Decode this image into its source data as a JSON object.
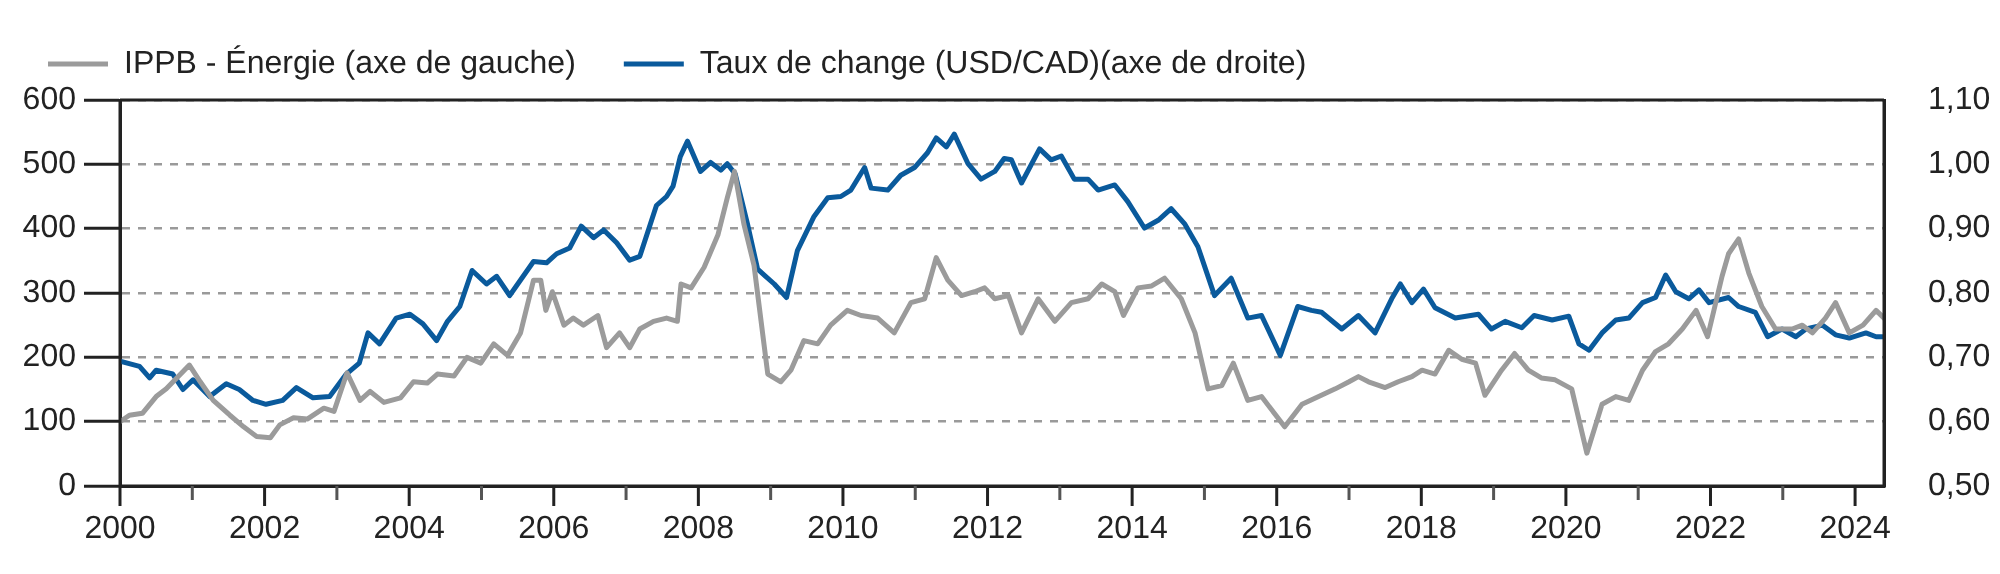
{
  "chart_data": {
    "type": "line",
    "legend": "top left",
    "grid": "y",
    "marker": "none",
    "line_style": "solid",
    "xlim": [
      2000,
      2024.4
    ],
    "xticks": [
      2000,
      {
        "value": 2001,
        "label": null
      },
      2002,
      {
        "value": 2003,
        "label": null
      },
      2004,
      {
        "value": 2005,
        "label": null
      },
      2006,
      {
        "value": 2007,
        "label": null
      },
      2008,
      {
        "value": 2009,
        "label": null
      },
      2010,
      {
        "value": 2011,
        "label": null
      },
      2012,
      {
        "value": 2013,
        "label": null
      },
      2014,
      {
        "value": 2015,
        "label": null
      },
      2016,
      {
        "value": 2017,
        "label": null
      },
      2018,
      {
        "value": 2019,
        "label": null
      },
      2020,
      {
        "value": 2021,
        "label": null
      },
      2022,
      {
        "value": 2023,
        "label": null
      },
      2024
    ],
    "ylim": [
      0,
      600
    ],
    "yticks": [
      0,
      100,
      200,
      300,
      400,
      500,
      600
    ],
    "y2lim": [
      0.5,
      1.1
    ],
    "y2ticks": [
      {
        "value": 0.5,
        "label": "0,50"
      },
      {
        "value": 0.6,
        "label": "0,60"
      },
      {
        "value": 0.7,
        "label": "0,70"
      },
      {
        "value": 0.8,
        "label": "0,80"
      },
      {
        "value": 0.9,
        "label": "0,90"
      },
      {
        "value": 1.0,
        "label": "1,00"
      },
      {
        "value": 1.1,
        "label": "1,10"
      }
    ],
    "series": [
      {
        "name": "IPPB - Énergie (axe de gauche)",
        "color": "#9b9b9b",
        "x": [
          2000.0,
          2000.13,
          2000.31,
          2000.5,
          2000.64,
          2000.96,
          2001.11,
          2001.29,
          2001.52,
          2001.71,
          2001.89,
          2002.08,
          2002.21,
          2002.4,
          2002.59,
          2002.82,
          2002.96,
          2003.14,
          2003.32,
          2003.46,
          2003.65,
          2003.88,
          2004.06,
          2004.25,
          2004.39,
          2004.62,
          2004.8,
          2004.99,
          2005.17,
          2005.36,
          2005.54,
          2005.72,
          2005.82,
          2005.89,
          2005.98,
          2006.14,
          2006.27,
          2006.41,
          2006.61,
          2006.73,
          2006.91,
          2007.05,
          2007.19,
          2007.38,
          2007.56,
          2007.71,
          2007.76,
          2007.9,
          2008.08,
          2008.27,
          2008.4,
          2008.5,
          2008.63,
          2008.77,
          2008.96,
          2009.14,
          2009.28,
          2009.46,
          2009.65,
          2009.83,
          2010.06,
          2010.25,
          2010.48,
          2010.71,
          2010.94,
          2011.13,
          2011.29,
          2011.45,
          2011.64,
          2011.82,
          2011.96,
          2012.1,
          2012.29,
          2012.47,
          2012.7,
          2012.93,
          2013.16,
          2013.39,
          2013.58,
          2013.76,
          2013.88,
          2014.08,
          2014.27,
          2014.45,
          2014.68,
          2014.87,
          2015.05,
          2015.24,
          2015.4,
          2015.6,
          2015.79,
          2016.11,
          2016.35,
          2016.58,
          2016.81,
          2017.0,
          2017.13,
          2017.27,
          2017.5,
          2017.68,
          2017.87,
          2018.01,
          2018.19,
          2018.38,
          2018.56,
          2018.75,
          2018.88,
          2019.11,
          2019.29,
          2019.48,
          2019.66,
          2019.85,
          2020.08,
          2020.29,
          2020.5,
          2020.69,
          2020.87,
          2021.06,
          2021.24,
          2021.42,
          2021.61,
          2021.8,
          2021.96,
          2022.16,
          2022.25,
          2022.39,
          2022.53,
          2022.71,
          2022.9,
          2023.13,
          2023.27,
          2023.41,
          2023.59,
          2023.73,
          2023.92,
          2024.11,
          2024.29,
          2024.4
        ],
        "values": [
          100,
          110,
          113,
          139,
          151,
          188,
          162,
          133,
          110,
          92,
          77,
          75,
          95,
          106,
          104,
          121,
          116,
          176,
          133,
          147,
          130,
          137,
          162,
          160,
          174,
          171,
          200,
          191,
          221,
          203,
          238,
          320,
          320,
          273,
          302,
          250,
          261,
          250,
          265,
          215,
          238,
          215,
          244,
          256,
          261,
          256,
          314,
          308,
          340,
          390,
          448,
          489,
          407,
          343,
          174,
          162,
          180,
          226,
          221,
          250,
          273,
          265,
          261,
          238,
          285,
          291,
          355,
          320,
          296,
          302,
          308,
          291,
          296,
          238,
          291,
          256,
          285,
          291,
          314,
          302,
          265,
          308,
          311,
          323,
          291,
          238,
          151,
          156,
          191,
          133,
          139,
          92,
          127,
          139,
          151,
          162,
          170,
          162,
          153,
          162,
          170,
          180,
          174,
          211,
          197,
          191,
          141,
          180,
          206,
          180,
          168,
          165,
          151,
          51,
          127,
          139,
          133,
          180,
          209,
          221,
          244,
          273,
          232,
          326,
          361,
          384,
          331,
          279,
          244,
          244,
          250,
          238,
          261,
          285,
          238,
          250,
          273,
          261
        ]
      },
      {
        "name": "Taux de change (USD/CAD)(axe de droite)",
        "color": "#0a5a9c",
        "axis": "y2",
        "x": [
          2000.0,
          2000.27,
          2000.41,
          2000.5,
          2000.73,
          2000.87,
          2001.01,
          2001.24,
          2001.47,
          2001.65,
          2001.84,
          2002.02,
          2002.25,
          2002.44,
          2002.67,
          2002.9,
          2003.13,
          2003.31,
          2003.43,
          2003.59,
          2003.82,
          2004.01,
          2004.19,
          2004.38,
          2004.53,
          2004.7,
          2004.87,
          2005.07,
          2005.21,
          2005.39,
          2005.72,
          2005.9,
          2006.04,
          2006.22,
          2006.38,
          2006.55,
          2006.69,
          2006.87,
          2007.05,
          2007.19,
          2007.42,
          2007.56,
          2007.65,
          2007.75,
          2007.85,
          2008.03,
          2008.17,
          2008.31,
          2008.4,
          2008.51,
          2008.68,
          2008.82,
          2009.05,
          2009.22,
          2009.37,
          2009.6,
          2009.79,
          2009.97,
          2010.11,
          2010.3,
          2010.39,
          2010.62,
          2010.8,
          2010.99,
          2011.17,
          2011.29,
          2011.43,
          2011.54,
          2011.73,
          2011.91,
          2012.1,
          2012.23,
          2012.33,
          2012.47,
          2012.72,
          2012.88,
          2013.02,
          2013.2,
          2013.39,
          2013.53,
          2013.76,
          2013.94,
          2014.17,
          2014.36,
          2014.54,
          2014.73,
          2014.91,
          2015.14,
          2015.37,
          2015.6,
          2015.79,
          2016.05,
          2016.29,
          2016.48,
          2016.62,
          2016.9,
          2017.13,
          2017.36,
          2017.59,
          2017.71,
          2017.87,
          2018.03,
          2018.19,
          2018.47,
          2018.79,
          2018.97,
          2019.16,
          2019.39,
          2019.56,
          2019.81,
          2020.04,
          2020.18,
          2020.32,
          2020.5,
          2020.69,
          2020.87,
          2021.06,
          2021.24,
          2021.38,
          2021.52,
          2021.7,
          2021.84,
          2021.98,
          2022.25,
          2022.39,
          2022.62,
          2022.79,
          2022.99,
          2023.18,
          2023.32,
          2023.55,
          2023.73,
          2023.92,
          2024.15,
          2024.29,
          2024.4
        ],
        "values": [
          0.694,
          0.686,
          0.668,
          0.68,
          0.674,
          0.65,
          0.665,
          0.639,
          0.659,
          0.65,
          0.633,
          0.627,
          0.633,
          0.653,
          0.637,
          0.639,
          0.674,
          0.691,
          0.738,
          0.721,
          0.761,
          0.767,
          0.752,
          0.726,
          0.756,
          0.779,
          0.835,
          0.814,
          0.826,
          0.796,
          0.849,
          0.847,
          0.861,
          0.87,
          0.904,
          0.886,
          0.898,
          0.878,
          0.851,
          0.857,
          0.936,
          0.95,
          0.966,
          1.012,
          1.036,
          0.989,
          1.003,
          0.991,
          1.001,
          0.985,
          0.907,
          0.837,
          0.814,
          0.793,
          0.866,
          0.919,
          0.948,
          0.95,
          0.96,
          0.995,
          0.963,
          0.96,
          0.983,
          0.995,
          1.018,
          1.041,
          1.027,
          1.047,
          1.001,
          0.977,
          0.989,
          1.009,
          1.007,
          0.971,
          1.024,
          1.007,
          1.013,
          0.977,
          0.977,
          0.96,
          0.968,
          0.942,
          0.901,
          0.913,
          0.931,
          0.907,
          0.872,
          0.796,
          0.823,
          0.761,
          0.765,
          0.703,
          0.779,
          0.773,
          0.77,
          0.744,
          0.765,
          0.738,
          0.791,
          0.814,
          0.785,
          0.806,
          0.777,
          0.761,
          0.767,
          0.744,
          0.756,
          0.746,
          0.765,
          0.758,
          0.764,
          0.721,
          0.711,
          0.738,
          0.758,
          0.761,
          0.785,
          0.793,
          0.828,
          0.802,
          0.791,
          0.805,
          0.785,
          0.793,
          0.779,
          0.77,
          0.732,
          0.744,
          0.732,
          0.744,
          0.75,
          0.735,
          0.73,
          0.738,
          0.732,
          0.732
        ]
      }
    ]
  }
}
